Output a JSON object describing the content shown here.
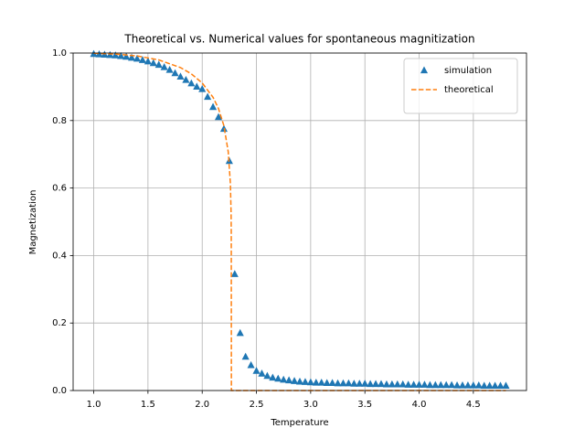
{
  "chart_data": {
    "type": "line",
    "title": "Theoretical vs. Numerical values for spontaneous magnitization",
    "x_label": "Temperature",
    "y_label": "Magnetization",
    "xlim": [
      0.81,
      4.99
    ],
    "ylim": [
      0,
      1
    ],
    "xticks": [
      {
        "value": 1,
        "label": "1.0"
      },
      1.5,
      {
        "value": 2,
        "label": "2.0"
      },
      2.5,
      {
        "value": 3,
        "label": "3.0"
      },
      3.5,
      {
        "value": 4,
        "label": "4.0"
      },
      4.5
    ],
    "yticks": [
      {
        "value": 0,
        "label": "0.0"
      },
      0.2,
      0.4,
      0.6,
      0.8,
      {
        "value": 1,
        "label": "1.0"
      }
    ],
    "grid": true,
    "legend": "upper right",
    "series": [
      {
        "name": "simulation",
        "color": "#1f77b4",
        "linestyle": "none",
        "marker": "triangle",
        "x": [
          1.0,
          1.05,
          1.1,
          1.15,
          1.2,
          1.25,
          1.3,
          1.35,
          1.4,
          1.45,
          1.5,
          1.55,
          1.6,
          1.65,
          1.7,
          1.75,
          1.8,
          1.85,
          1.9,
          1.95,
          2.0,
          2.05,
          2.1,
          2.15,
          2.2,
          2.25,
          2.3,
          2.35,
          2.4,
          2.45,
          2.5,
          2.55,
          2.6,
          2.65,
          2.7,
          2.75,
          2.8,
          2.85,
          2.9,
          2.95,
          3.0,
          3.05,
          3.1,
          3.15,
          3.2,
          3.25,
          3.3,
          3.35,
          3.4,
          3.45,
          3.5,
          3.55,
          3.6,
          3.65,
          3.7,
          3.75,
          3.8,
          3.85,
          3.9,
          3.95,
          4.0,
          4.05,
          4.1,
          4.15,
          4.2,
          4.25,
          4.3,
          4.35,
          4.4,
          4.45,
          4.5,
          4.55,
          4.6,
          4.65,
          4.7,
          4.75,
          4.8
        ],
        "values": [
          0.997,
          0.996,
          0.995,
          0.994,
          0.993,
          0.991,
          0.989,
          0.986,
          0.983,
          0.979,
          0.975,
          0.97,
          0.965,
          0.958,
          0.95,
          0.94,
          0.93,
          0.92,
          0.91,
          0.9,
          0.893,
          0.87,
          0.84,
          0.81,
          0.775,
          0.68,
          0.345,
          0.17,
          0.1,
          0.075,
          0.058,
          0.05,
          0.043,
          0.038,
          0.035,
          0.032,
          0.03,
          0.028,
          0.026,
          0.025,
          0.024,
          0.023,
          0.023,
          0.022,
          0.022,
          0.021,
          0.021,
          0.021,
          0.02,
          0.02,
          0.02,
          0.019,
          0.019,
          0.019,
          0.018,
          0.018,
          0.018,
          0.018,
          0.017,
          0.017,
          0.017,
          0.017,
          0.016,
          0.016,
          0.016,
          0.016,
          0.016,
          0.015,
          0.015,
          0.015,
          0.015,
          0.015,
          0.014,
          0.014,
          0.014,
          0.014,
          0.014
        ]
      },
      {
        "name": "theoretical",
        "color": "#ff7f0e",
        "linestyle": "dashed",
        "marker": "none",
        "x": [
          1.0,
          1.2,
          1.4,
          1.6,
          1.8,
          1.9,
          2.0,
          2.1,
          2.15,
          2.2,
          2.24,
          2.26,
          2.2665,
          2.268,
          2.2692,
          4.8
        ],
        "values": [
          0.9993,
          0.997,
          0.9914,
          0.9796,
          0.9569,
          0.9383,
          0.9113,
          0.8688,
          0.8357,
          0.7847,
          0.7074,
          0.6135,
          0.524,
          0.465,
          0,
          0
        ]
      }
    ]
  }
}
